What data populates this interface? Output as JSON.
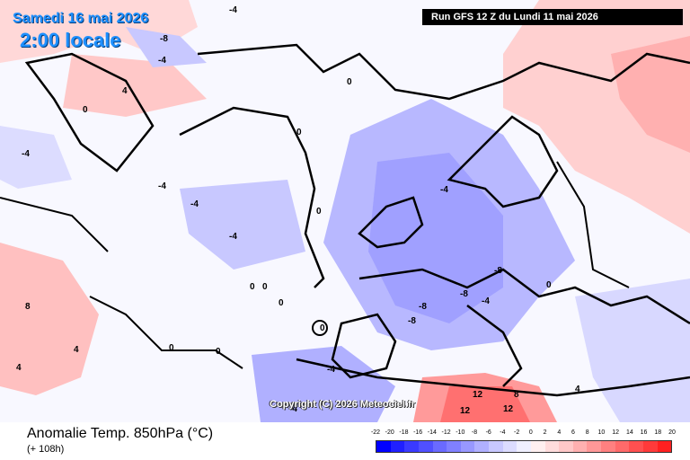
{
  "header": {
    "date": "Samedi 16 mai 2026",
    "time": "2:00 locale",
    "run": "Run GFS 12 Z du Lundi 11 mai 2026"
  },
  "copyright": "Copyright (C) 2026 Meteociel.fr",
  "footer": {
    "title": "Anomalie Temp. 850hPa (°C)",
    "lead": "(+ 108h)"
  },
  "scale": {
    "labels": [
      "-22",
      "-20",
      "-18",
      "-16",
      "-14",
      "-12",
      "-10",
      "-8",
      "-6",
      "-4",
      "-2",
      "0",
      "2",
      "4",
      "6",
      "8",
      "10",
      "12",
      "14",
      "16",
      "18",
      "20"
    ],
    "colors": [
      "#0000ff",
      "#2020ff",
      "#3a3aff",
      "#5050ff",
      "#6a6aff",
      "#8080ff",
      "#9898ff",
      "#b0b0ff",
      "#c8c8ff",
      "#dcdcff",
      "#f0f0ff",
      "#fff0f0",
      "#ffdcdc",
      "#ffc8c8",
      "#ffb0b0",
      "#ff9898",
      "#ff8080",
      "#ff6a6a",
      "#ff5050",
      "#ff3a3a",
      "#ff2020"
    ]
  },
  "map_labels": [
    {
      "text": "-4"
    },
    {
      "text": "-8"
    },
    {
      "text": "-4"
    },
    {
      "text": "4"
    },
    {
      "text": "0"
    },
    {
      "text": "-4"
    },
    {
      "text": "-4"
    },
    {
      "text": "-4"
    },
    {
      "text": "-4"
    },
    {
      "text": "-4"
    },
    {
      "text": "0"
    },
    {
      "text": "0"
    },
    {
      "text": "0"
    },
    {
      "text": "0"
    },
    {
      "text": "8"
    },
    {
      "text": "4"
    },
    {
      "text": "0"
    },
    {
      "text": "0"
    },
    {
      "text": "0"
    },
    {
      "text": "-8"
    },
    {
      "text": "-8"
    },
    {
      "text": "-8"
    },
    {
      "text": "-8"
    },
    {
      "text": "-4"
    },
    {
      "text": "4"
    },
    {
      "text": "8"
    },
    {
      "text": "12"
    },
    {
      "text": "12"
    },
    {
      "text": "12"
    },
    {
      "text": "4"
    },
    {
      "text": "0"
    },
    {
      "text": "-4"
    },
    {
      "text": "-4"
    },
    {
      "text": "0"
    },
    {
      "text": "0"
    }
  ]
}
